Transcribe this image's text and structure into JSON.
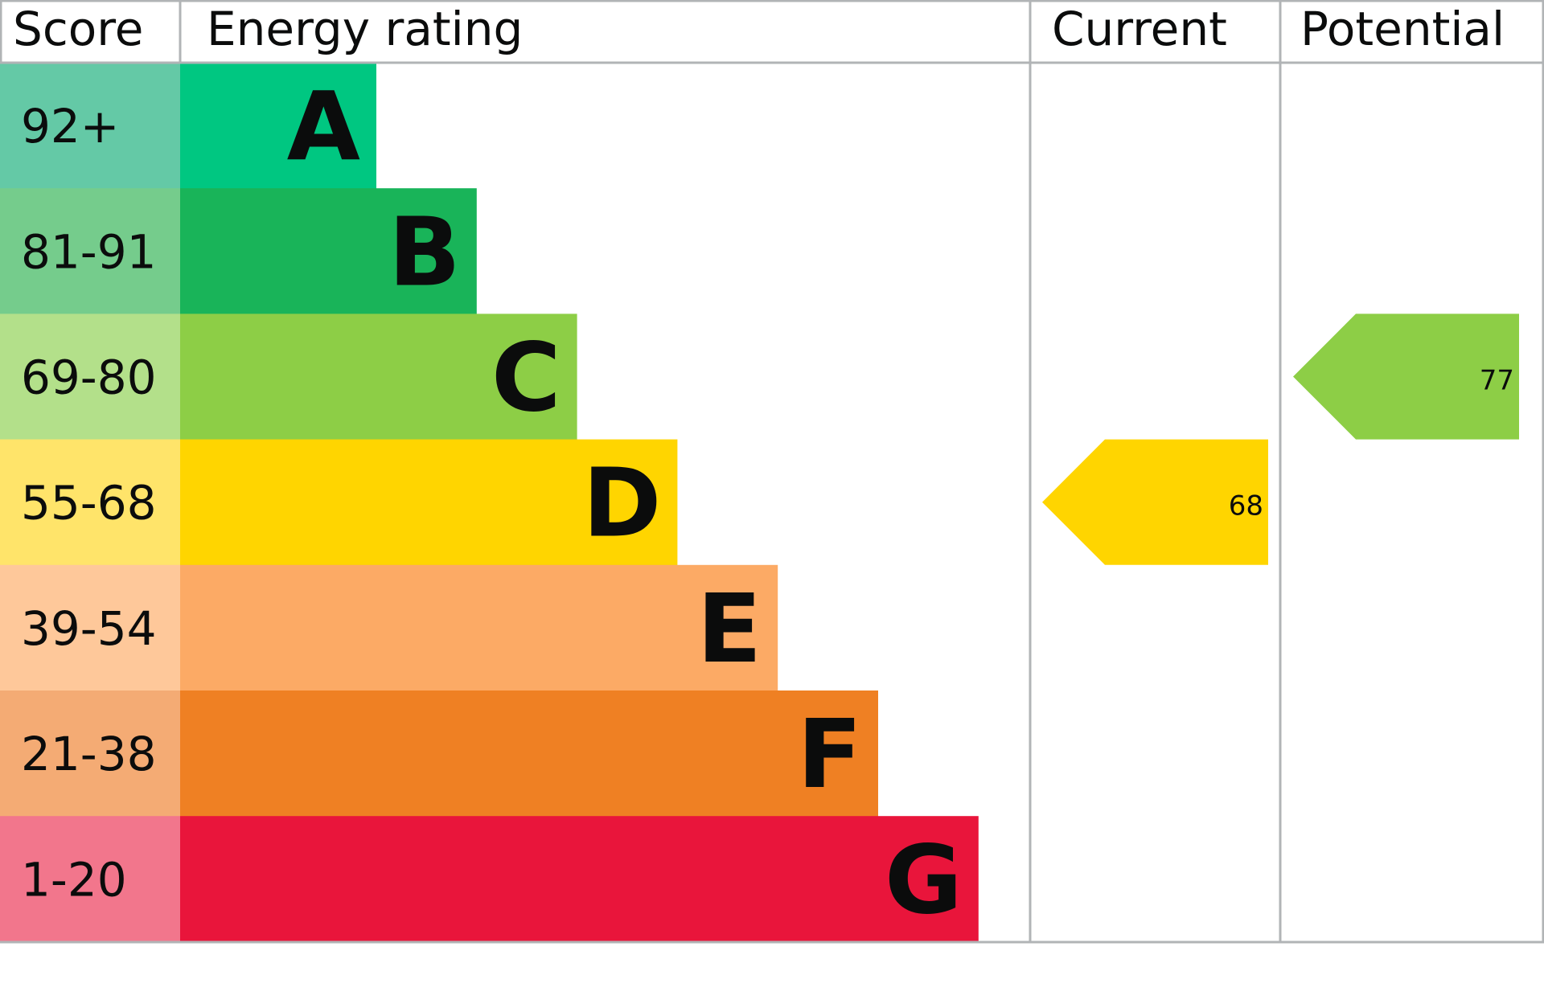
{
  "chart_data": {
    "type": "bar",
    "headers": {
      "score": "Score",
      "rating": "Energy rating",
      "current": "Current",
      "potential": "Potential"
    },
    "bands": [
      {
        "letter": "A",
        "range": "92+",
        "color": "#00c781",
        "score_color": "#64c9a6"
      },
      {
        "letter": "B",
        "range": "81-91",
        "color": "#19b459",
        "score_color": "#75cc8c"
      },
      {
        "letter": "C",
        "range": "69-80",
        "color": "#8dce46",
        "score_color": "#b3e08a"
      },
      {
        "letter": "D",
        "range": "55-68",
        "color": "#ffd500",
        "score_color": "#ffe46a"
      },
      {
        "letter": "E",
        "range": "39-54",
        "color": "#fcaa65",
        "score_color": "#fec89a"
      },
      {
        "letter": "F",
        "range": "21-38",
        "color": "#ef8023",
        "score_color": "#f4ab74"
      },
      {
        "letter": "G",
        "range": "1-20",
        "color": "#e9153b",
        "score_color": "#f2768c"
      }
    ],
    "current": {
      "value": "68",
      "band": "D"
    },
    "potential": {
      "value": "77",
      "band": "C"
    }
  }
}
